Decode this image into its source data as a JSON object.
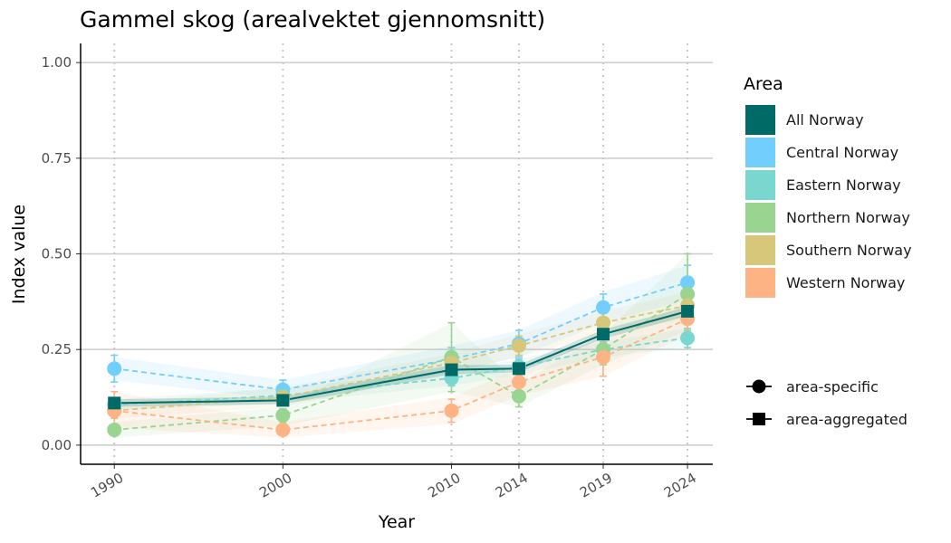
{
  "chart_data": {
    "type": "line",
    "title": "Gammel skog (arealvektet gjennomsnitt)",
    "xlabel": "Year",
    "ylabel": "Index value",
    "x": [
      1990,
      2000,
      2010,
      2014,
      2019,
      2024
    ],
    "xticks": [
      "1990",
      "2000",
      "2010",
      "2014",
      "2019",
      "2024"
    ],
    "yticks": [
      "0.00",
      "0.25",
      "0.50",
      "0.75",
      "1.00"
    ],
    "ylim": [
      -0.05,
      1.05
    ],
    "xlim": [
      1988,
      2025.5
    ],
    "grid": "horizontal major, vertical dotted at data years",
    "legend_title": "Area",
    "legend_position": "right",
    "series": [
      {
        "name": "Central Norway",
        "color": "#72CFFD",
        "marker": "circle",
        "line": "dashed",
        "values": [
          0.2,
          0.145,
          0.225,
          0.265,
          0.36,
          0.425
        ],
        "err_low": [
          0.165,
          0.12,
          0.19,
          0.23,
          0.33,
          0.38
        ],
        "err_high": [
          0.235,
          0.17,
          0.255,
          0.3,
          0.395,
          0.47
        ],
        "band_low": [
          0.17,
          0.12,
          0.19,
          0.23,
          0.32,
          0.38
        ],
        "band_high": [
          0.23,
          0.17,
          0.26,
          0.3,
          0.4,
          0.47
        ]
      },
      {
        "name": "Eastern Norway",
        "color": "#7AD7D0",
        "marker": "circle",
        "line": "dashed",
        "values": [
          0.105,
          0.13,
          0.175,
          0.205,
          0.25,
          0.28
        ],
        "err_low": [
          0.09,
          0.11,
          0.155,
          0.185,
          0.23,
          0.255
        ],
        "err_high": [
          0.12,
          0.15,
          0.195,
          0.225,
          0.27,
          0.305
        ],
        "band_low": [
          0.09,
          0.11,
          0.155,
          0.185,
          0.23,
          0.255
        ],
        "band_high": [
          0.12,
          0.15,
          0.195,
          0.225,
          0.27,
          0.305
        ]
      },
      {
        "name": "Northern Norway",
        "color": "#9AD491",
        "marker": "circle",
        "line": "dashed",
        "values": [
          0.04,
          0.078,
          0.23,
          0.128,
          0.25,
          0.395
        ],
        "err_low": [
          0.025,
          0.06,
          0.14,
          0.1,
          0.21,
          0.3
        ],
        "err_high": [
          0.055,
          0.095,
          0.32,
          0.155,
          0.29,
          0.5
        ],
        "band_low": [
          0.02,
          0.05,
          0.14,
          0.1,
          0.21,
          0.3
        ],
        "band_high": [
          0.06,
          0.1,
          0.32,
          0.16,
          0.29,
          0.5
        ]
      },
      {
        "name": "Southern Norway",
        "color": "#D7C77A",
        "marker": "circle",
        "line": "dashed",
        "values": [
          0.09,
          0.125,
          0.215,
          0.26,
          0.32,
          0.365
        ],
        "err_low": [
          0.07,
          0.105,
          0.195,
          0.235,
          0.295,
          0.335
        ],
        "err_high": [
          0.11,
          0.145,
          0.235,
          0.285,
          0.345,
          0.395
        ],
        "band_low": [
          0.07,
          0.1,
          0.19,
          0.23,
          0.29,
          0.33
        ],
        "band_high": [
          0.11,
          0.15,
          0.24,
          0.29,
          0.35,
          0.4
        ]
      },
      {
        "name": "Western Norway",
        "color": "#FDB383",
        "marker": "circle",
        "line": "dashed",
        "values": [
          0.09,
          0.04,
          0.09,
          0.165,
          0.23,
          0.33
        ],
        "err_low": [
          0.045,
          0.025,
          0.06,
          0.135,
          0.18,
          0.295
        ],
        "err_high": [
          0.14,
          0.055,
          0.12,
          0.195,
          0.28,
          0.365
        ],
        "band_low": [
          0.045,
          0.02,
          0.055,
          0.13,
          0.18,
          0.29
        ],
        "band_high": [
          0.14,
          0.06,
          0.125,
          0.2,
          0.28,
          0.37
        ]
      },
      {
        "name": "All Norway",
        "color": "#006A66",
        "marker": "square",
        "line": "solid",
        "values": [
          0.11,
          0.117,
          0.197,
          0.2,
          0.29,
          0.35
        ],
        "err_low": [
          0.1,
          0.107,
          0.187,
          0.19,
          0.28,
          0.34
        ],
        "err_high": [
          0.12,
          0.127,
          0.207,
          0.21,
          0.3,
          0.36
        ],
        "band_low": [
          0.1,
          0.107,
          0.185,
          0.19,
          0.278,
          0.338
        ],
        "band_high": [
          0.12,
          0.127,
          0.21,
          0.21,
          0.302,
          0.362
        ]
      }
    ],
    "legend_order": [
      "All Norway",
      "Central Norway",
      "Eastern Norway",
      "Northern Norway",
      "Southern Norway",
      "Western Norway"
    ],
    "shape_legend": [
      {
        "label": "area-specific",
        "marker": "circle"
      },
      {
        "label": "area-aggregated",
        "marker": "square"
      }
    ]
  }
}
